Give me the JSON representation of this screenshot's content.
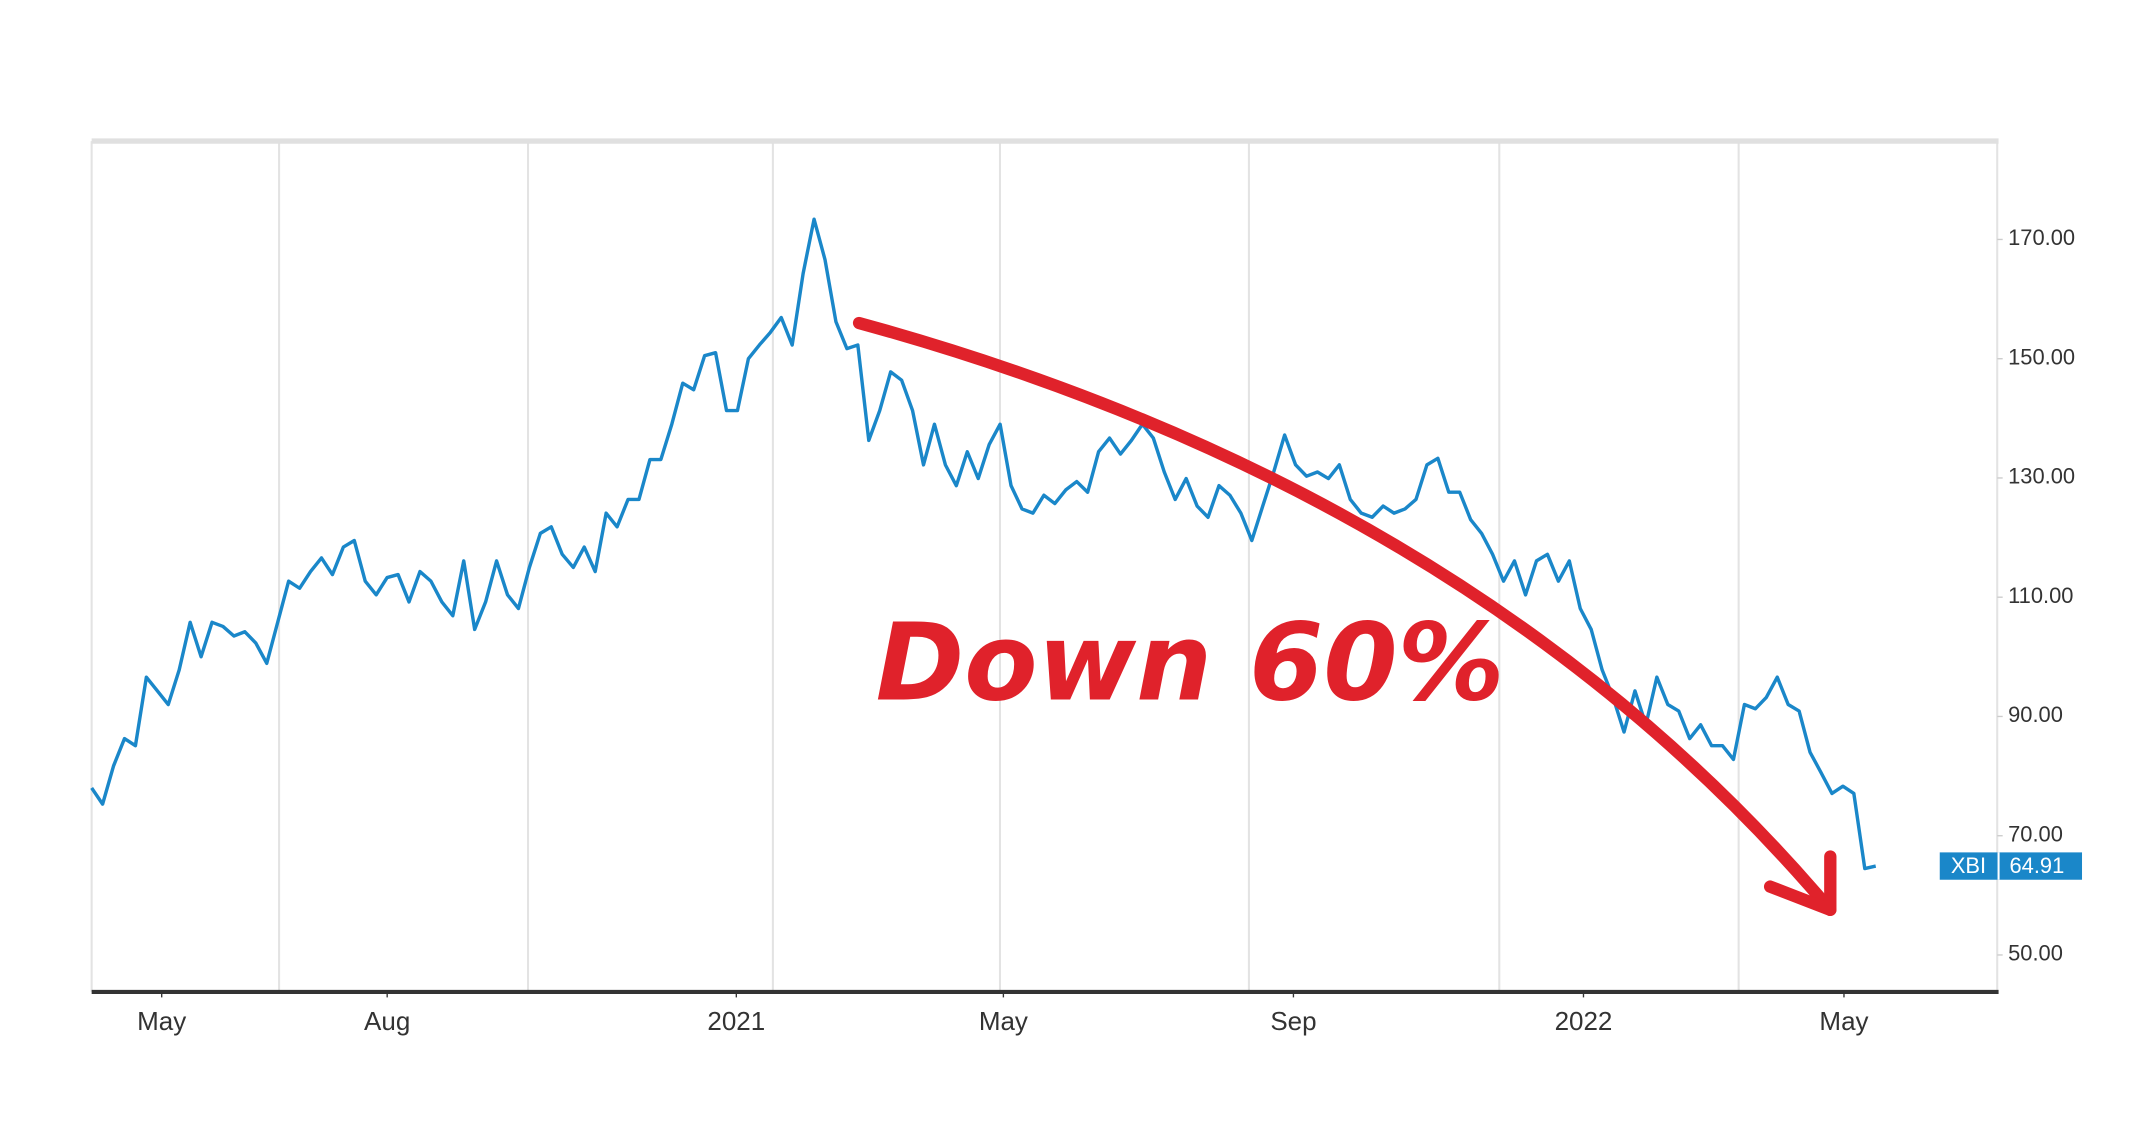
{
  "chart_data": {
    "type": "line",
    "annotation": "Down 60%",
    "series": [
      {
        "name": "XBI",
        "color": "#1a87c9",
        "values": [
          78.0,
          75.3,
          81.7,
          86.3,
          85.1,
          96.6,
          94.3,
          92.0,
          97.8,
          105.8,
          100.0,
          105.8,
          105.1,
          103.5,
          104.2,
          102.3,
          98.9,
          105.8,
          112.7,
          111.5,
          114.3,
          116.6,
          113.8,
          118.4,
          119.5,
          112.7,
          110.4,
          113.3,
          113.8,
          109.2,
          114.3,
          112.7,
          109.2,
          106.9,
          116.1,
          104.6,
          109.2,
          116.1,
          110.4,
          108.1,
          115.0,
          120.7,
          121.8,
          117.2,
          115.0,
          118.4,
          114.3,
          124.1,
          121.8,
          126.4,
          126.4,
          133.1,
          133.1,
          139.0,
          145.9,
          144.8,
          150.5,
          151.0,
          141.3,
          141.3,
          150.0,
          152.3,
          154.4,
          156.9,
          152.3,
          164.3,
          173.4,
          166.6,
          156.2,
          151.7,
          152.3,
          136.3,
          141.3,
          147.8,
          146.4,
          141.3,
          132.2,
          139.0,
          132.2,
          128.7,
          134.4,
          129.9,
          135.6,
          139.0,
          128.7,
          124.8,
          124.1,
          127.1,
          125.7,
          128.0,
          129.4,
          127.6,
          134.4,
          136.7,
          134.0,
          136.3,
          139.0,
          136.7,
          131.0,
          126.4,
          129.9,
          125.3,
          123.4,
          128.7,
          127.1,
          124.1,
          119.5,
          125.3,
          131.0,
          137.2,
          132.2,
          130.3,
          131.0,
          129.9,
          132.2,
          126.4,
          124.1,
          123.4,
          125.3,
          124.1,
          124.8,
          126.4,
          132.2,
          133.3,
          127.6,
          127.6,
          123.0,
          120.7,
          117.2,
          112.7,
          116.1,
          110.4,
          116.1,
          117.2,
          112.7,
          116.1,
          108.1,
          104.6,
          97.8,
          93.2,
          87.4,
          94.3,
          88.6,
          96.6,
          92.0,
          90.9,
          86.3,
          88.6,
          85.1,
          85.1,
          82.8,
          92.0,
          91.3,
          93.2,
          96.6,
          92.0,
          90.9,
          84.0,
          80.6,
          77.1,
          78.3,
          77.1,
          64.5,
          64.91
        ]
      }
    ],
    "xlim": [
      0,
      174.1
    ],
    "xticks": [
      {
        "value": 6.4,
        "label": "May"
      },
      {
        "value": 27,
        "label": "Aug"
      },
      {
        "value": 58.9,
        "label": "2021"
      },
      {
        "value": 83.3,
        "label": "May"
      },
      {
        "value": 109.8,
        "label": "Sep"
      },
      {
        "value": 136.3,
        "label": "2022"
      },
      {
        "value": 160.1,
        "label": "May"
      }
    ],
    "ylim": [
      43.8,
      186.5
    ],
    "yticks": [
      {
        "value": 50,
        "label": "50.00"
      },
      {
        "value": 70,
        "label": "70.00"
      },
      {
        "value": 90,
        "label": "90.00"
      },
      {
        "value": 110,
        "label": "110.00"
      },
      {
        "value": 130,
        "label": "130.00"
      },
      {
        "value": 150,
        "label": "150.00"
      },
      {
        "value": 170,
        "label": "170.00"
      }
    ]
  }
}
